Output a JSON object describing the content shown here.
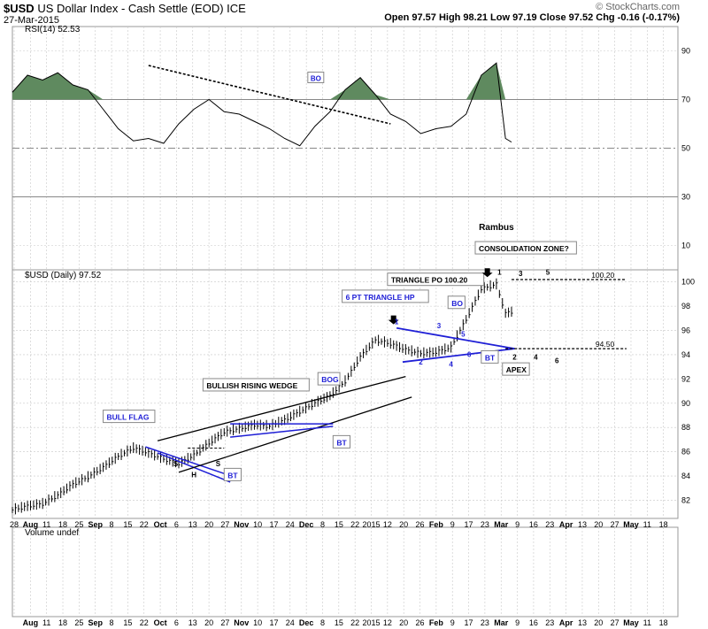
{
  "header": {
    "symbol": "$USD",
    "name": "US Dollar Index - Cash Settle (EOD)",
    "exchange": "ICE",
    "date": "27-Mar-2015",
    "ohlc": "Open 97.57  High 98.21  Low 97.19  Close 97.52  Chg -0.16 (-0.17%)",
    "watermark": "© StockCharts.com"
  },
  "colors": {
    "rsi_fill": "#5f8a5f",
    "blue": "#1f1fd6",
    "callout_border": "#888888",
    "grid": "#c8c8c8"
  },
  "chart_data": [
    {
      "type": "line",
      "title": "RSI(14) 52.53",
      "ylim": [
        0,
        100
      ],
      "yticks": [
        10,
        30,
        50,
        70,
        90
      ],
      "overbought": 70,
      "midline": 50,
      "oversold": 30,
      "x": [
        0,
        5,
        10,
        15,
        20,
        25,
        30,
        35,
        40,
        45,
        50,
        55,
        60,
        65,
        70,
        75,
        80,
        85,
        90,
        95,
        100,
        105,
        110,
        115,
        120,
        125,
        130,
        135,
        140,
        145,
        150,
        155,
        160,
        163,
        165
      ],
      "values": [
        73,
        80,
        78,
        81,
        76,
        74,
        66,
        58,
        53,
        54,
        52,
        60,
        66,
        70,
        65,
        64,
        61,
        58,
        54,
        51,
        59,
        65,
        74,
        79,
        72,
        64,
        61,
        56,
        58,
        59,
        64,
        80,
        85,
        54,
        52.5
      ]
    },
    {
      "type": "line",
      "title": "$USD (Daily) 97.52",
      "ylim": [
        80.5,
        101
      ],
      "yticks": [
        82,
        84,
        86,
        88,
        90,
        92,
        94,
        96,
        98,
        100
      ],
      "x_axis_labels": [
        "28",
        "Aug",
        "11",
        "18",
        "25",
        "Sep",
        "8",
        "15",
        "22",
        "Oct",
        "6",
        "13",
        "20",
        "27",
        "Nov",
        "10",
        "17",
        "24",
        "Dec",
        "8",
        "15",
        "22",
        "2015",
        "12",
        "20",
        "26",
        "Feb",
        "9",
        "17",
        "23",
        "Mar",
        "9",
        "16",
        "23",
        "Apr",
        "13",
        "20",
        "27",
        "May",
        "11",
        "18"
      ],
      "x": [
        0,
        5,
        10,
        15,
        20,
        25,
        30,
        35,
        40,
        45,
        50,
        55,
        60,
        65,
        70,
        75,
        80,
        85,
        90,
        95,
        100,
        105,
        110,
        115,
        120,
        125,
        130,
        135,
        140,
        145,
        150,
        155,
        160,
        163,
        165
      ],
      "values": [
        81.2,
        81.5,
        81.7,
        82.4,
        83.3,
        83.9,
        84.7,
        85.6,
        86.3,
        85.9,
        85.4,
        85.0,
        85.7,
        86.7,
        87.6,
        87.9,
        88.2,
        88.1,
        88.6,
        89.3,
        90.0,
        90.6,
        91.8,
        93.8,
        95.2,
        94.9,
        94.4,
        94.1,
        94.2,
        94.6,
        96.9,
        99.4,
        99.8,
        97.4,
        97.52
      ]
    },
    {
      "type": "bar",
      "title": "Volume undef",
      "x_axis_labels": [
        "Aug",
        "11",
        "18",
        "25",
        "Sep",
        "8",
        "15",
        "22",
        "Oct",
        "6",
        "13",
        "20",
        "27",
        "Nov",
        "10",
        "17",
        "24",
        "Dec",
        "8",
        "15",
        "22",
        "2015",
        "12",
        "20",
        "26",
        "Feb",
        "9",
        "17",
        "23",
        "Mar",
        "9",
        "16",
        "23",
        "Apr",
        "13",
        "20",
        "27",
        "May",
        "11",
        "18"
      ]
    }
  ],
  "annotations": {
    "rambus": "Rambus",
    "rsi_bo": "BO",
    "bull_flag": "BULL FLAG",
    "bullish_rising_wedge": "BULLISH RISING WEDGE",
    "bog": "BOG",
    "six_pt_triangle": "6 PT TRIANGLE HP",
    "bo": "BO",
    "bt": "BT",
    "triangle_po": "TRIANGLE PO 100.20",
    "consolidation_zone": "CONSOLIDATION ZONE?",
    "apex": "APEX",
    "level_10020": "100.20",
    "level_9450": "94.50",
    "hs_left": "S",
    "hs_head": "H",
    "hs_right": "S",
    "tri_pts": [
      "1",
      "2",
      "3",
      "4",
      "5",
      "6"
    ],
    "cons_pts": [
      "1",
      "2",
      "3",
      "4",
      "5",
      "6"
    ]
  }
}
